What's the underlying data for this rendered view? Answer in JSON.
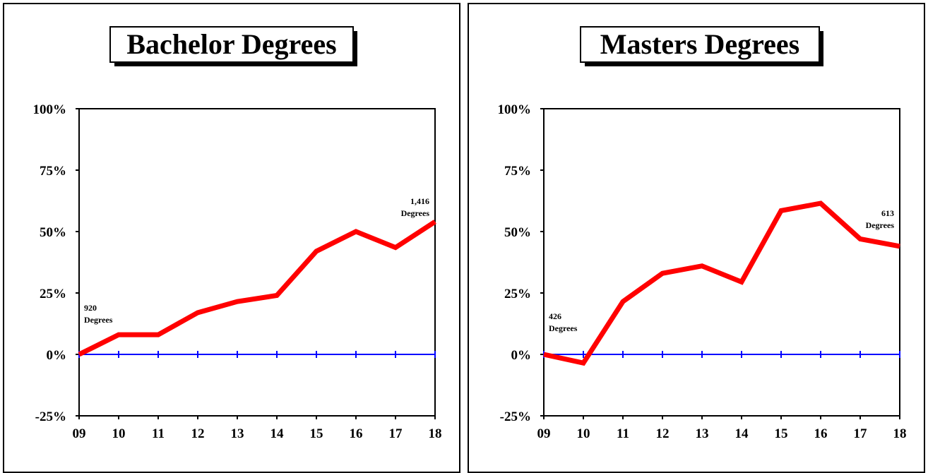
{
  "chart_data": [
    {
      "type": "line",
      "title": "Bachelor Degrees",
      "categories": [
        "09",
        "10",
        "11",
        "12",
        "13",
        "14",
        "15",
        "16",
        "17",
        "18"
      ],
      "series": [
        {
          "values": [
            0,
            8,
            8,
            17,
            21.5,
            24,
            42,
            50,
            43.5,
            54
          ]
        }
      ],
      "y_tick_labels": [
        "100%",
        "75%",
        "50%",
        "25%",
        "0%",
        "-25%"
      ],
      "y_ticks": [
        100,
        75,
        50,
        25,
        0,
        -25
      ],
      "ylim": [
        -25,
        100
      ],
      "annotations": [
        {
          "line1": "920",
          "line2": "Degrees"
        },
        {
          "line1": "1,416",
          "line2": "Degrees"
        }
      ],
      "line_color": "#ff0000",
      "baseline_color": "#0000ff"
    },
    {
      "type": "line",
      "title": "Masters Degrees",
      "categories": [
        "09",
        "10",
        "11",
        "12",
        "13",
        "14",
        "15",
        "16",
        "17",
        "18"
      ],
      "series": [
        {
          "values": [
            0,
            -3.5,
            21.5,
            33,
            36,
            29.5,
            58.5,
            61.5,
            47,
            44
          ]
        }
      ],
      "y_tick_labels": [
        "100%",
        "75%",
        "50%",
        "25%",
        "0%",
        "-25%"
      ],
      "y_ticks": [
        100,
        75,
        50,
        25,
        0,
        -25
      ],
      "ylim": [
        -25,
        100
      ],
      "annotations": [
        {
          "line1": "426",
          "line2": "Degrees"
        },
        {
          "line1": "613",
          "line2": "Degrees"
        }
      ],
      "line_color": "#ff0000",
      "baseline_color": "#0000ff"
    }
  ]
}
